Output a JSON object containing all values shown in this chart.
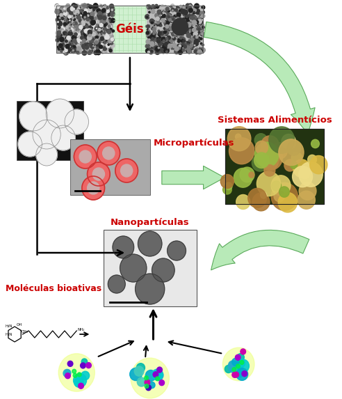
{
  "bg_color": "#ffffff",
  "geis_label": "Géis",
  "geis_label_color": "#cc0000",
  "microparticulas_label": "Micropartículas",
  "microparticulas_color": "#cc0000",
  "nanoparticulas_label": "Nanopartículas",
  "nanoparticulas_color": "#cc0000",
  "sistemas_label": "Sistemas Alimentícios",
  "sistemas_color": "#cc0000",
  "moleculas_label": "Moléculas bioativas",
  "moleculas_color": "#cc0000",
  "green_fill": "#b8eab8",
  "green_edge": "#5aaa5a",
  "figsize": [
    4.92,
    5.73
  ],
  "dpi": 100
}
